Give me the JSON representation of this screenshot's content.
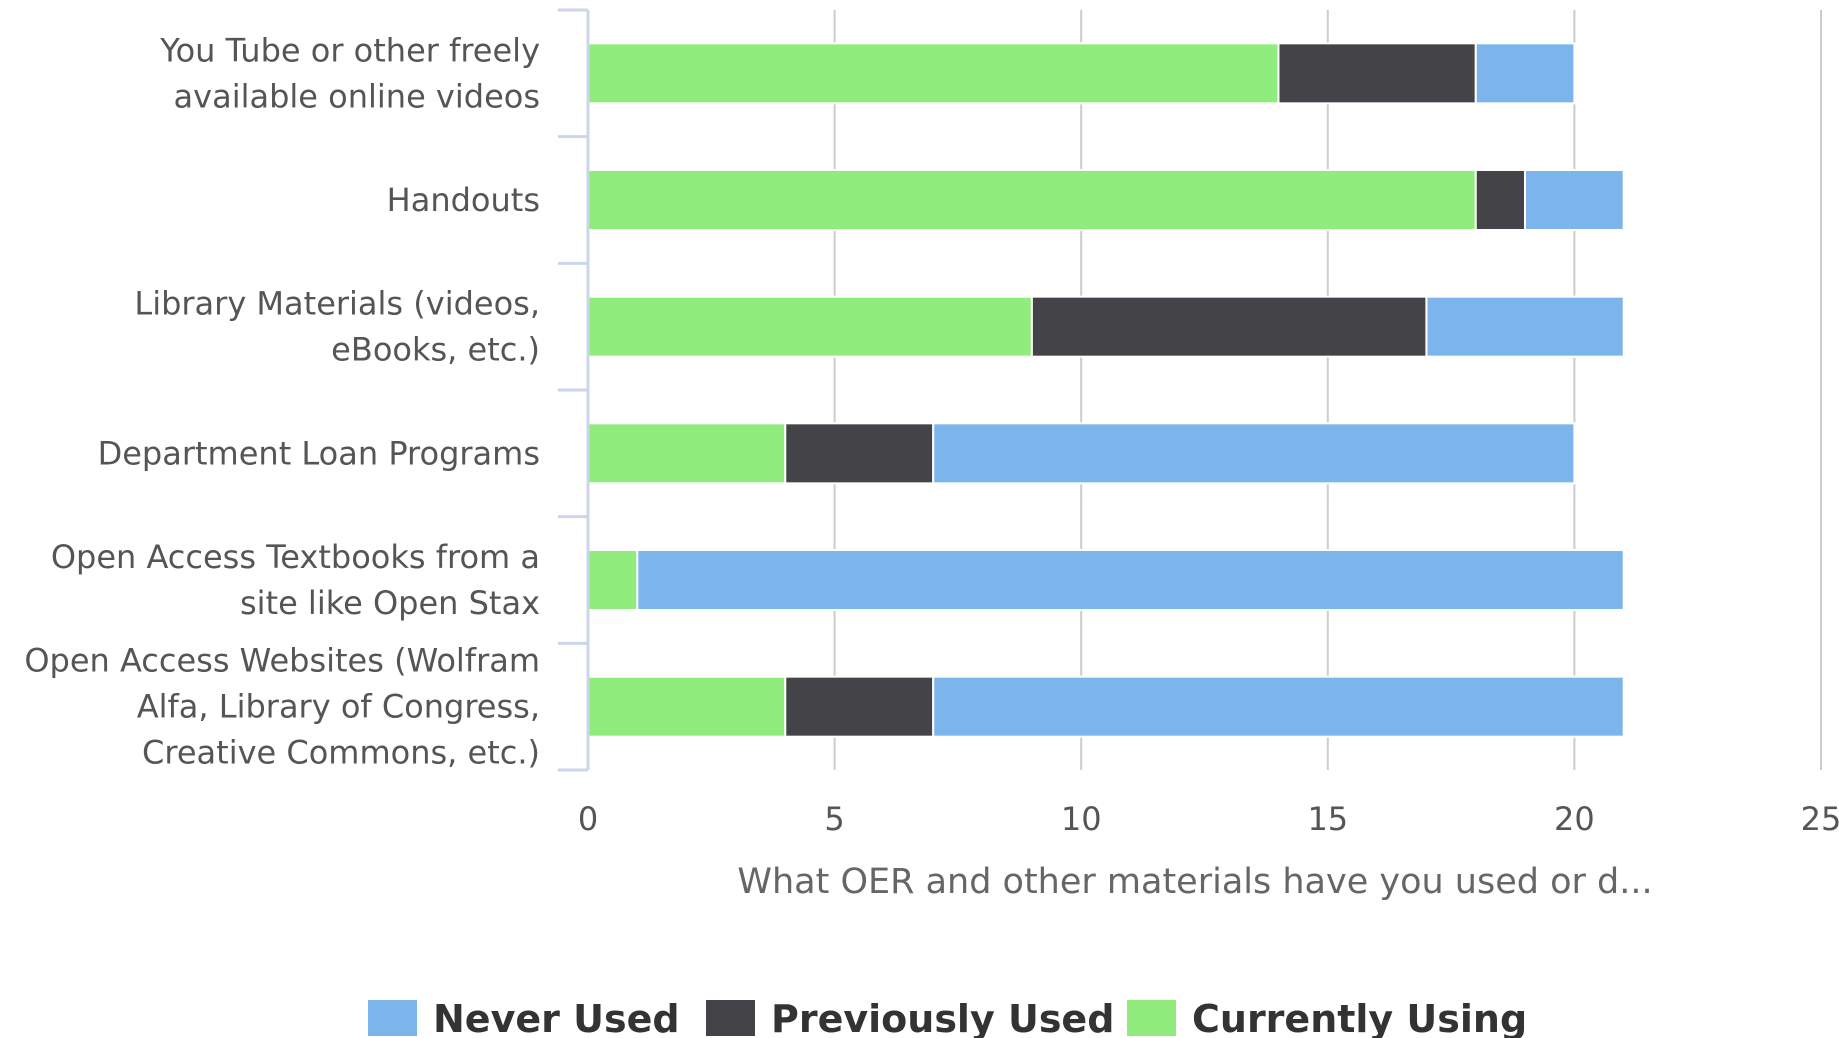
{
  "chart_data": {
    "type": "bar",
    "orientation": "horizontal",
    "stacked": true,
    "categories": [
      [
        "You Tube or other freely",
        "available online videos"
      ],
      [
        "Handouts"
      ],
      [
        "Library Materials (videos,",
        "eBooks, etc.)"
      ],
      [
        "Department Loan Programs"
      ],
      [
        "Open Access Textbooks from a",
        "site like Open Stax"
      ],
      [
        "Open Access Websites (Wolfram",
        "Alfa, Library of Congress,",
        "Creative Commons, etc.)"
      ]
    ],
    "series": [
      {
        "name": "Currently Using",
        "color": "#90ED7D",
        "values": [
          14,
          18,
          9,
          4,
          1,
          4
        ]
      },
      {
        "name": "Previously Used",
        "color": "#434348",
        "values": [
          4,
          1,
          8,
          3,
          0,
          3
        ]
      },
      {
        "name": "Never Used",
        "color": "#7CB5EC",
        "values": [
          2,
          2,
          4,
          13,
          20,
          14
        ]
      }
    ],
    "legend_order": [
      "Never Used",
      "Previously Used",
      "Currently Using"
    ],
    "xlabel": "What OER and other materials have you used or d...",
    "xlim": [
      0,
      25
    ],
    "xticks": [
      0,
      5,
      10,
      15,
      20,
      25
    ],
    "grid": true,
    "legend_position": "bottom"
  }
}
